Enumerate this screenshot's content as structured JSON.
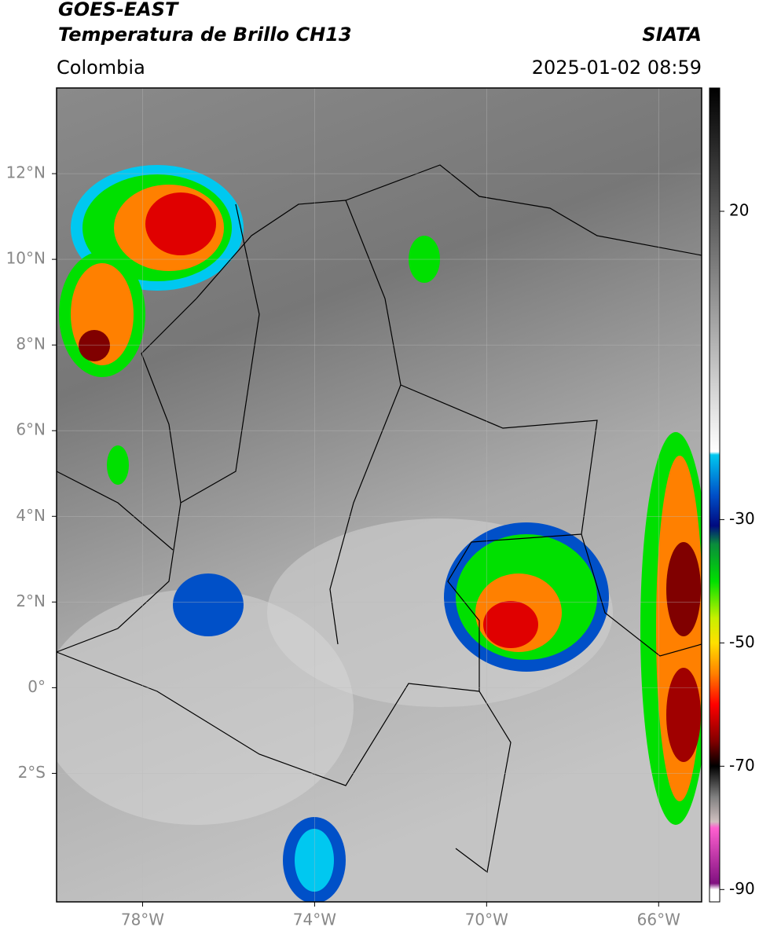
{
  "header": {
    "title": "GOES-EAST",
    "subtitle": "Temperatura de Brillo CH13",
    "source": "SIATA",
    "region": "Colombia",
    "datetime": "2025-01-02 08:59"
  },
  "map": {
    "xlim": [
      -80,
      -65
    ],
    "ylim": [
      -5,
      14
    ],
    "grid": true,
    "xticks": [
      {
        "value": -78,
        "label": "78°W"
      },
      {
        "value": -74,
        "label": "74°W"
      },
      {
        "value": -70,
        "label": "70°W"
      },
      {
        "value": -66,
        "label": "66°W"
      }
    ],
    "yticks": [
      {
        "value": 12,
        "label": "12°N"
      },
      {
        "value": 10,
        "label": "10°N"
      },
      {
        "value": 8,
        "label": "8°N"
      },
      {
        "value": 6,
        "label": "6°N"
      },
      {
        "value": 4,
        "label": "4°N"
      },
      {
        "value": 2,
        "label": "2°N"
      },
      {
        "value": 0,
        "label": "0°"
      },
      {
        "value": -2,
        "label": "2°S"
      }
    ]
  },
  "colorbar": {
    "lim": [
      -92,
      40
    ],
    "ticks": [
      20,
      -30,
      -50,
      -70,
      -90
    ],
    "colormap": [
      {
        "value": 40,
        "color": "#000000"
      },
      {
        "value": -19,
        "color": "#ffffff"
      },
      {
        "value": -19.5,
        "color": "#00c8f0"
      },
      {
        "value": -26,
        "color": "#0050c8"
      },
      {
        "value": -31,
        "color": "#000a80"
      },
      {
        "value": -34,
        "color": "#0a8c3c"
      },
      {
        "value": -40,
        "color": "#00e000"
      },
      {
        "value": -46,
        "color": "#c8f000"
      },
      {
        "value": -50,
        "color": "#ffe000"
      },
      {
        "value": -55,
        "color": "#ff8000"
      },
      {
        "value": -60,
        "color": "#ff0000"
      },
      {
        "value": -66,
        "color": "#800000"
      },
      {
        "value": -70,
        "color": "#000000"
      },
      {
        "value": -75,
        "color": "#808080"
      },
      {
        "value": -79,
        "color": "#d0c0c0"
      },
      {
        "value": -80,
        "color": "#ff60d0"
      },
      {
        "value": -89,
        "color": "#801080"
      },
      {
        "value": -90,
        "color": "#ffffff"
      }
    ]
  }
}
